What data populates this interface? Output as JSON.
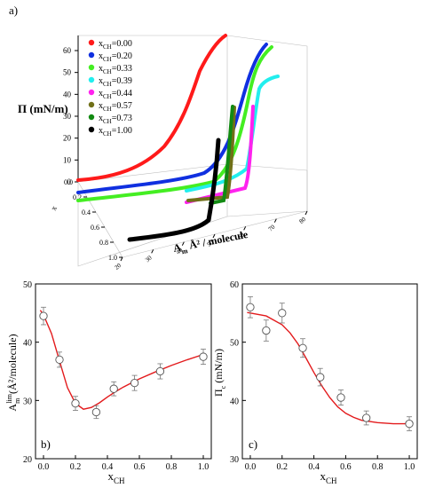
{
  "panels": {
    "a_label": "a)",
    "b_label": "b)",
    "c_label": "c)"
  },
  "chart_data": [
    {
      "id": "a",
      "type": "line",
      "title": "",
      "zlabel": "Π (mN/m)",
      "xlabel_main": "A",
      "xlabel_sub": "m",
      "xlabel_rest": " Å² / molecule",
      "ylabel": "x",
      "z_ticks": [
        "0",
        "10",
        "20",
        "30",
        "40",
        "50",
        "60"
      ],
      "y_ticks": [
        "0.0",
        "0.2",
        "0.4",
        "0.6",
        "0.8",
        "1.0"
      ],
      "x_ticks": [
        "20",
        "30",
        "40",
        "50",
        "60",
        "70",
        "80"
      ],
      "legend_prefix": "x",
      "legend_sub": "CH",
      "series": [
        {
          "name": "0.00",
          "color": "#ff1a1a"
        },
        {
          "name": "0.20",
          "color": "#1030e0"
        },
        {
          "name": "0.33",
          "color": "#44ee22"
        },
        {
          "name": "0.39",
          "color": "#22eeee"
        },
        {
          "name": "0.44",
          "color": "#ff22ee"
        },
        {
          "name": "0.57",
          "color": "#707018"
        },
        {
          "name": "0.73",
          "color": "#128a12"
        },
        {
          "name": "1.00",
          "color": "#000000"
        }
      ]
    },
    {
      "id": "b",
      "type": "scatter",
      "ylabel_main": "A",
      "ylabel_sup": "lim",
      "ylabel_sub": "m",
      "ylabel_rest": "(Å²/molecule)",
      "xlabel_main": "x",
      "xlabel_sub": "CH",
      "xlim": [
        -0.05,
        1.05
      ],
      "ylim": [
        20,
        50
      ],
      "x_ticks": [
        "0.0",
        "0.2",
        "0.4",
        "0.6",
        "0.8",
        "1.0"
      ],
      "y_ticks": [
        "20",
        "30",
        "40",
        "50"
      ],
      "points": [
        {
          "x": 0.0,
          "y": 44.5,
          "err": 1.5
        },
        {
          "x": 0.1,
          "y": 37.0,
          "err": 1.3
        },
        {
          "x": 0.2,
          "y": 29.5,
          "err": 1.2
        },
        {
          "x": 0.33,
          "y": 28.0,
          "err": 1.1
        },
        {
          "x": 0.44,
          "y": 32.0,
          "err": 1.2
        },
        {
          "x": 0.57,
          "y": 33.0,
          "err": 1.3
        },
        {
          "x": 0.73,
          "y": 35.0,
          "err": 1.3
        },
        {
          "x": 1.0,
          "y": 37.5,
          "err": 1.3
        }
      ],
      "fit": {
        "x": [
          -0.02,
          0.0,
          0.05,
          0.1,
          0.15,
          0.2,
          0.25,
          0.3,
          0.35,
          0.4,
          0.45,
          0.5,
          0.6,
          0.7,
          0.8,
          0.9,
          1.0
        ],
        "y": [
          45.5,
          44.7,
          41.5,
          36.8,
          32.2,
          29.5,
          28.5,
          28.8,
          29.6,
          30.6,
          31.5,
          32.3,
          33.7,
          34.9,
          36.0,
          37.0,
          37.9
        ]
      },
      "fit_color": "#e31a1c"
    },
    {
      "id": "c",
      "type": "scatter",
      "ylabel_main": "Π",
      "ylabel_sub": "c",
      "ylabel_rest": " (mN/m)",
      "xlabel_main": "x",
      "xlabel_sub": "CH",
      "xlim": [
        -0.05,
        1.05
      ],
      "ylim": [
        30,
        60
      ],
      "x_ticks": [
        "0.0",
        "0.2",
        "0.4",
        "0.6",
        "0.8",
        "1.0"
      ],
      "y_ticks": [
        "30",
        "40",
        "50",
        "60"
      ],
      "points": [
        {
          "x": 0.0,
          "y": 56.0,
          "err": 1.8
        },
        {
          "x": 0.1,
          "y": 52.0,
          "err": 1.8
        },
        {
          "x": 0.2,
          "y": 55.0,
          "err": 1.7
        },
        {
          "x": 0.33,
          "y": 49.0,
          "err": 1.6
        },
        {
          "x": 0.44,
          "y": 44.0,
          "err": 1.5
        },
        {
          "x": 0.57,
          "y": 40.5,
          "err": 1.3
        },
        {
          "x": 0.73,
          "y": 37.0,
          "err": 1.2
        },
        {
          "x": 1.0,
          "y": 36.0,
          "err": 1.2
        }
      ],
      "fit": {
        "x": [
          -0.02,
          0.0,
          0.1,
          0.2,
          0.25,
          0.3,
          0.35,
          0.4,
          0.45,
          0.5,
          0.55,
          0.6,
          0.65,
          0.7,
          0.8,
          0.9,
          1.0
        ],
        "y": [
          55.1,
          55.0,
          54.5,
          53.0,
          51.6,
          49.7,
          47.3,
          44.8,
          42.5,
          40.5,
          38.9,
          37.8,
          37.1,
          36.6,
          36.2,
          36.0,
          36.0
        ]
      },
      "fit_color": "#e31a1c"
    }
  ]
}
